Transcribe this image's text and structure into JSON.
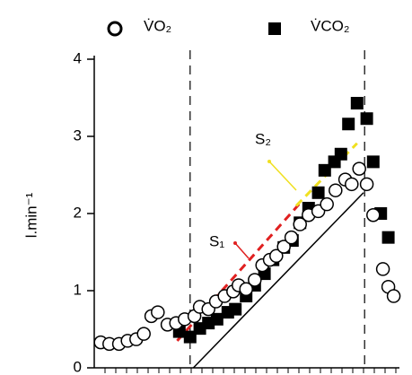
{
  "chart_data": {
    "type": "scatter",
    "y_label": "l.min⁻¹",
    "xlim": [
      0,
      28
    ],
    "ylim": [
      0,
      4
    ],
    "yticks": [
      0,
      1,
      2,
      3,
      4
    ],
    "series": [
      {
        "name": "V̇O₂",
        "color": "#000000",
        "marker": "circle",
        "x": [
          0.6,
          1.4,
          2.3,
          3.1,
          3.9,
          4.6,
          5.3,
          5.9,
          6.8,
          7.6,
          8.4,
          9.3,
          9.8,
          10.6,
          11.3,
          12.1,
          12.9,
          13.4,
          14.1,
          14.9,
          15.6,
          16.3,
          16.9,
          17.6,
          18.3,
          19.1,
          19.9,
          20.8,
          21.6,
          22.4,
          23.3,
          23.9,
          24.6,
          25.3,
          25.9,
          26.8,
          27.3,
          27.8
        ],
        "values": [
          0.33,
          0.31,
          0.31,
          0.35,
          0.37,
          0.44,
          0.67,
          0.72,
          0.56,
          0.58,
          0.63,
          0.67,
          0.79,
          0.76,
          0.86,
          0.93,
          0.99,
          1.07,
          1.02,
          1.14,
          1.33,
          1.4,
          1.45,
          1.57,
          1.69,
          1.86,
          1.98,
          2.03,
          2.12,
          2.3,
          2.44,
          2.38,
          2.58,
          2.38,
          1.98,
          1.28,
          1.05,
          0.93
        ]
      },
      {
        "name": "V̇CO₂",
        "color": "#000000",
        "marker": "square",
        "x": [
          7.9,
          8.9,
          9.8,
          10.6,
          11.4,
          12.4,
          13.1,
          14.1,
          14.9,
          15.8,
          16.6,
          17.6,
          18.4,
          19.1,
          19.9,
          20.8,
          21.4,
          22.3,
          22.9,
          23.6,
          24.4,
          25.3,
          25.9,
          26.6,
          27.3
        ],
        "values": [
          0.47,
          0.4,
          0.51,
          0.58,
          0.63,
          0.72,
          0.76,
          0.93,
          1.07,
          1.22,
          1.4,
          1.56,
          1.65,
          1.88,
          2.07,
          2.27,
          2.56,
          2.67,
          2.77,
          3.16,
          3.43,
          3.23,
          2.67,
          2.0,
          1.69
        ]
      }
    ],
    "lines": [
      {
        "color": "#e02020",
        "dashed": true,
        "x": [
          7.7,
          19.2
        ],
        "y": [
          0.35,
          2.15
        ]
      },
      {
        "color": "#f0e020",
        "dashed": true,
        "x": [
          18.75,
          24.4
        ],
        "y": [
          2.1,
          2.91
        ]
      },
      {
        "color": "#000000",
        "dashed": false,
        "x": [
          9.2,
          25.0
        ],
        "y": [
          0,
          2.27
        ]
      }
    ],
    "vlines": [
      8.9,
      25.1
    ],
    "annotations": [
      "S₁",
      "S₂"
    ]
  }
}
